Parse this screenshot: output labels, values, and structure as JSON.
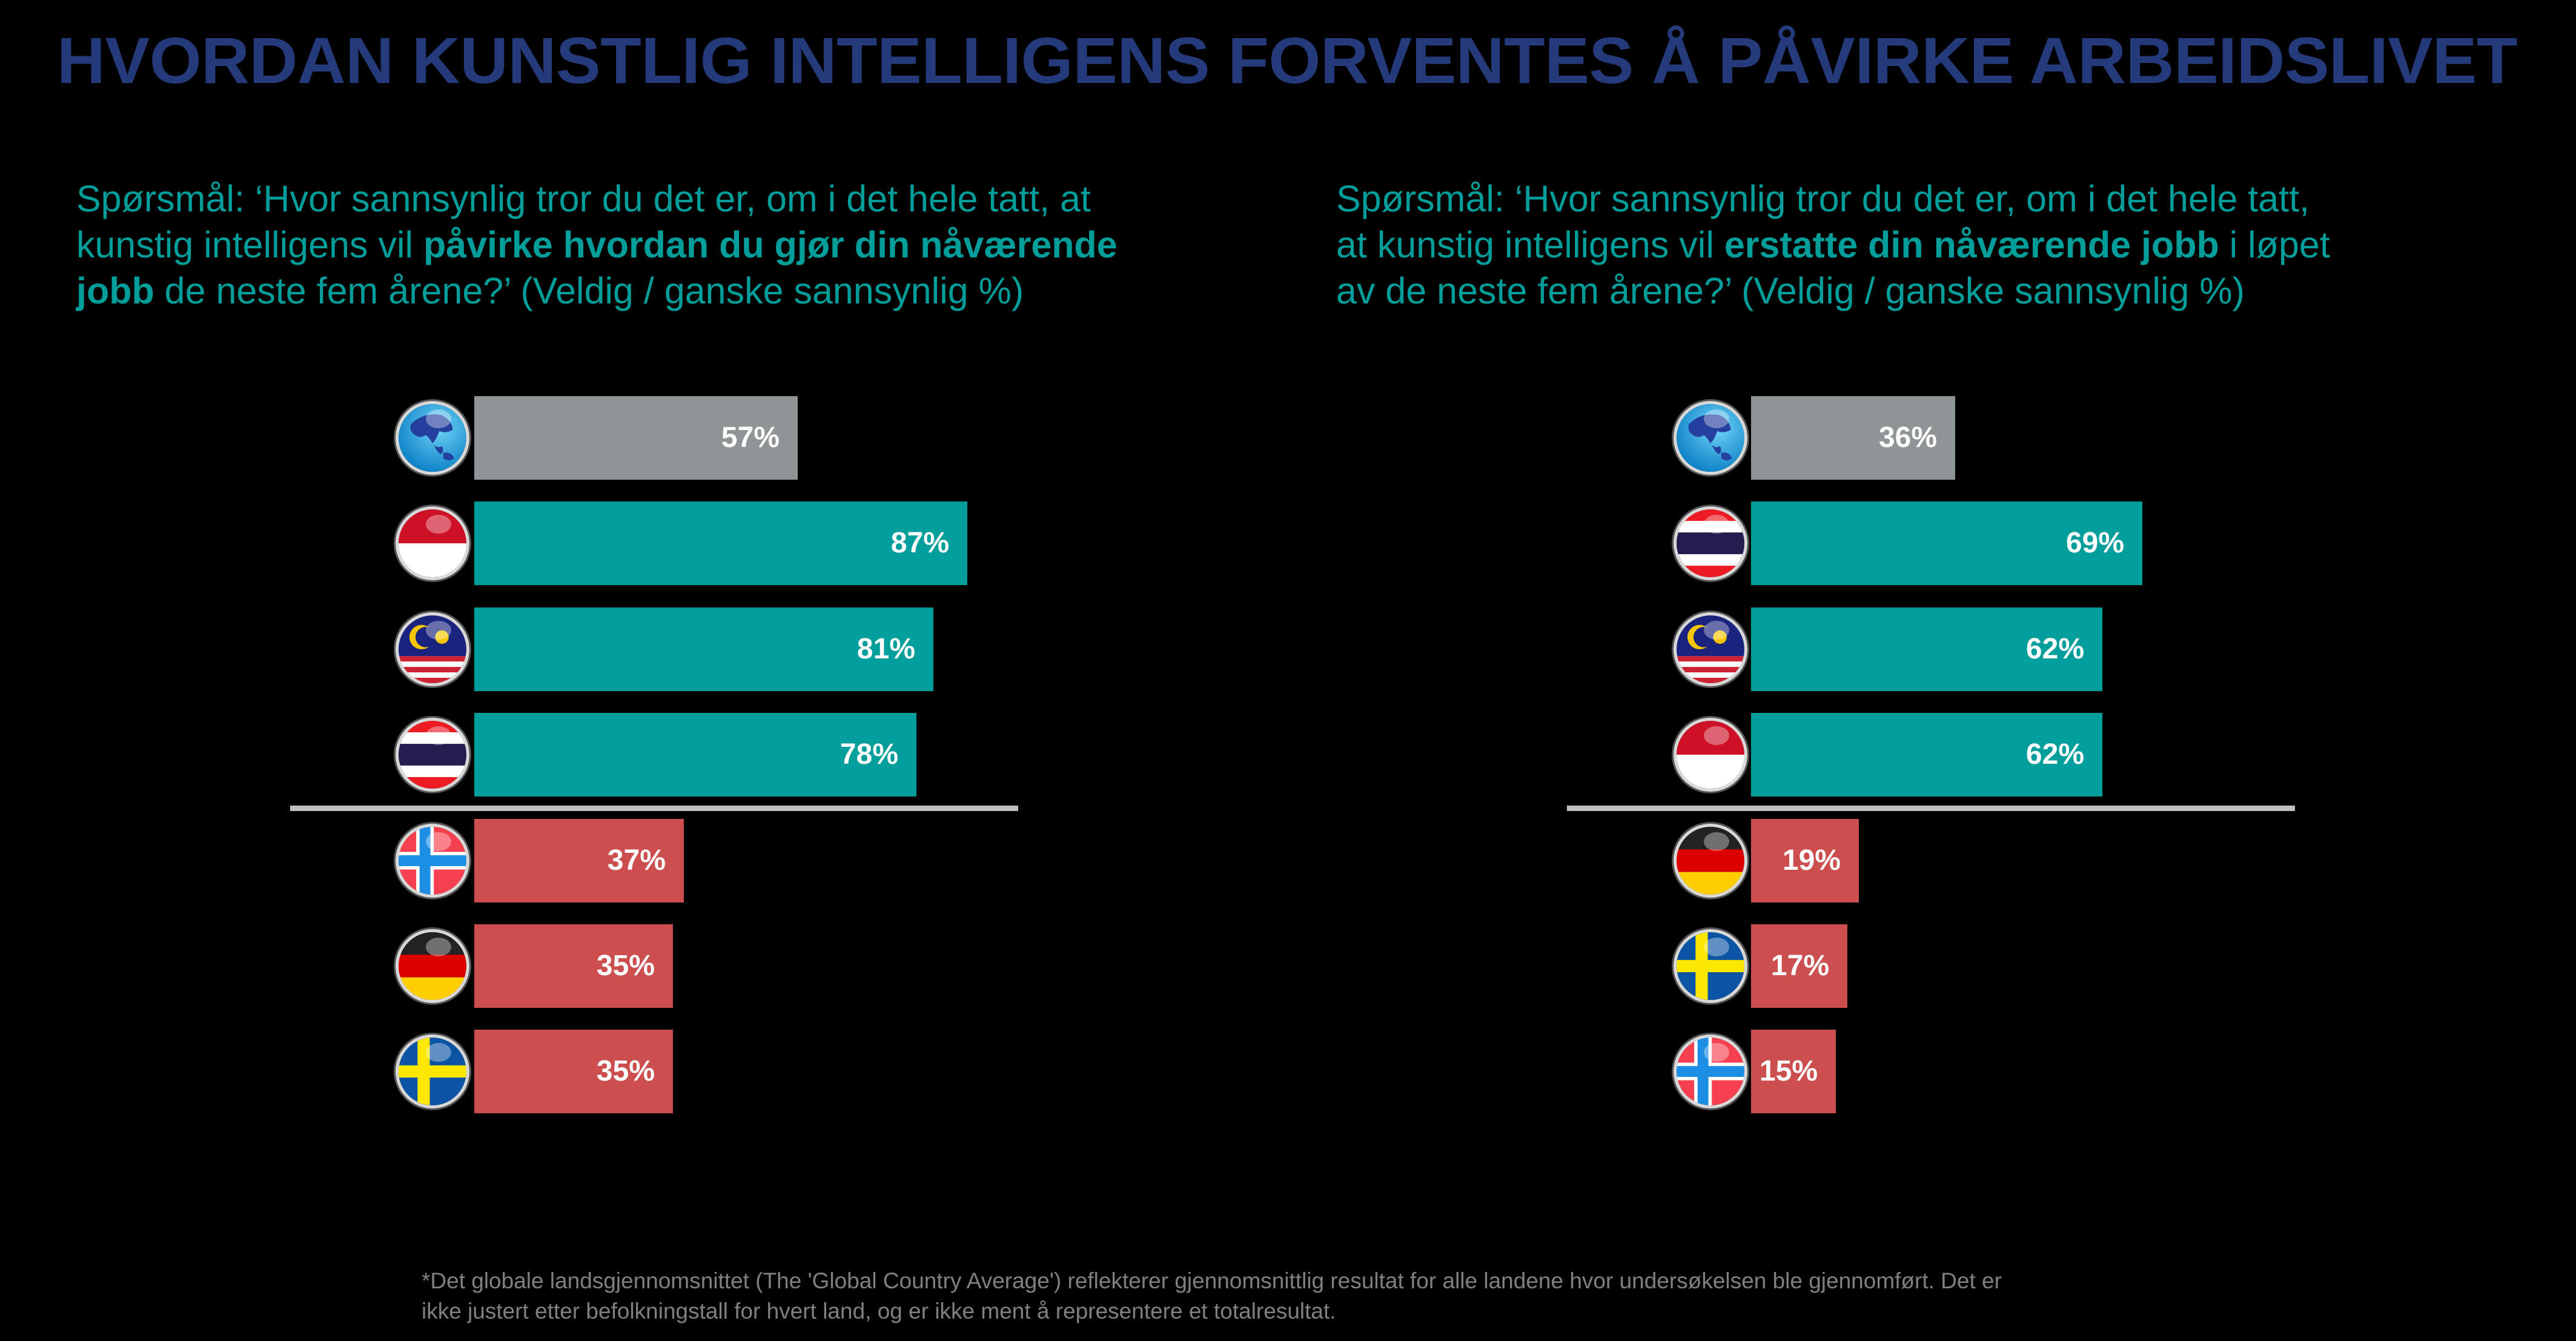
{
  "title": "HVORDAN KUNSTLIG INTELLIGENS FORVENTES Å PÅVIRKE ARBEIDSLIVET",
  "colors": {
    "title": "#253a7a",
    "question": "#009e9a",
    "global_bar": "#8e9594",
    "high_bar": "#019e9b",
    "low_bar": "#cd4e4e",
    "separator": "#bfbfbf",
    "footnote": "#808080",
    "background": "#000000"
  },
  "left": {
    "question": {
      "line1": "Spørsmål: ‘Hvor sannsynlig tror du det er, om i det hele tatt, at",
      "line2_pre": "kunstig intelligens vil ",
      "line2_bold": "påvirke hvordan du gjør din nåværende",
      "line3_bold": "jobb",
      "line3_post": " de neste fem årene?’ (Veldig / ganske sannsynlig %)"
    }
  },
  "right": {
    "question": {
      "line1": "Spørsmål: ‘Hvor sannsynlig tror du det er, om i det hele tatt,",
      "line2_pre": "at kunstig intelligens vil ",
      "line2_bold": "erstatte din nåværende jobb",
      "line2_post": " i løpet",
      "line3": "av de neste fem årene?’ (Veldig / ganske sannsynlig %)"
    }
  },
  "chart_data": [
    {
      "type": "bar",
      "orientation": "horizontal",
      "title": "Spørsmål: ‘Hvor sannsynlig tror du det er, om i det hele tatt, at kunstig intelligens vil påvirke hvordan du gjør din nåværende jobb de neste fem årene?’ (Veldig / ganske sannsynlig %)",
      "categories": [
        "Global Country Average",
        "Indonesia",
        "Malaysia",
        "Thailand",
        "Norway",
        "Germany",
        "Sweden"
      ],
      "icons": [
        "globe-icon",
        "indonesia-flag-icon",
        "malaysia-flag-icon",
        "thailand-flag-icon",
        "norway-flag-icon",
        "germany-flag-icon",
        "sweden-flag-icon"
      ],
      "values": [
        57,
        87,
        81,
        78,
        37,
        35,
        35
      ],
      "labels": [
        "57%",
        "87%",
        "81%",
        "78%",
        "37%",
        "35%",
        "35%"
      ],
      "groups": [
        "global",
        "high",
        "high",
        "high",
        "low",
        "low",
        "low"
      ],
      "separator_after_index": 3,
      "xlabel": "",
      "ylabel": "",
      "xlim": [
        0,
        100
      ],
      "grid": false,
      "legend": "none"
    },
    {
      "type": "bar",
      "orientation": "horizontal",
      "title": "Spørsmål: ‘Hvor sannsynlig tror du det er, om i det hele tatt, at kunstig intelligens vil erstatte din nåværende jobb i løpet av de neste fem årene?’ (Veldig / ganske sannsynlig %)",
      "categories": [
        "Global Country Average",
        "Thailand",
        "Malaysia",
        "Indonesia",
        "Germany",
        "Sweden",
        "Norway"
      ],
      "icons": [
        "globe-icon",
        "thailand-flag-icon",
        "malaysia-flag-icon",
        "indonesia-flag-icon",
        "germany-flag-icon",
        "sweden-flag-icon",
        "norway-flag-icon"
      ],
      "values": [
        36,
        69,
        62,
        62,
        19,
        17,
        15
      ],
      "labels": [
        "36%",
        "69%",
        "62%",
        "62%",
        "19%",
        "17%",
        "15%"
      ],
      "groups": [
        "global",
        "high",
        "high",
        "high",
        "low",
        "low",
        "low"
      ],
      "separator_after_index": 3,
      "xlabel": "",
      "ylabel": "",
      "xlim": [
        0,
        100
      ],
      "grid": false,
      "legend": "none"
    }
  ],
  "footnote": {
    "line1": "*Det globale landsgjennomsnittet (The 'Global Country Average') reflekterer gjennomsnittlig resultat for alle landene hvor undersøkelsen ble gjennomført. Det er",
    "line2": "ikke justert etter befolkningstall for hvert land, og er ikke ment å representere et totalresultat."
  }
}
